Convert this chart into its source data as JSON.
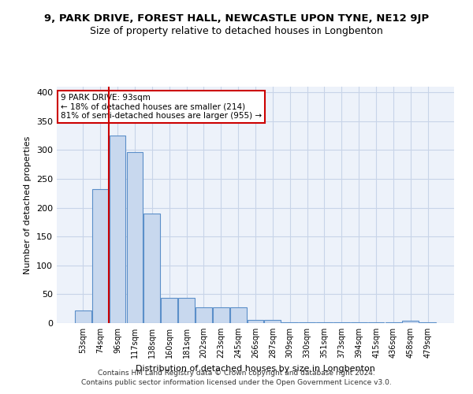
{
  "title_line1": "9, PARK DRIVE, FOREST HALL, NEWCASTLE UPON TYNE, NE12 9JP",
  "title_line2": "Size of property relative to detached houses in Longbenton",
  "xlabel": "Distribution of detached houses by size in Longbenton",
  "ylabel": "Number of detached properties",
  "categories": [
    "53sqm",
    "74sqm",
    "96sqm",
    "117sqm",
    "138sqm",
    "160sqm",
    "181sqm",
    "202sqm",
    "223sqm",
    "245sqm",
    "266sqm",
    "287sqm",
    "309sqm",
    "330sqm",
    "351sqm",
    "373sqm",
    "394sqm",
    "415sqm",
    "436sqm",
    "458sqm",
    "479sqm"
  ],
  "values": [
    22,
    232,
    325,
    296,
    190,
    44,
    44,
    27,
    28,
    28,
    5,
    5,
    1,
    1,
    1,
    1,
    1,
    1,
    1,
    4,
    1
  ],
  "bar_color": "#c8d8ee",
  "bar_edge_color": "#5b8fc9",
  "property_line_color": "#cc0000",
  "annotation_text_line1": "9 PARK DRIVE: 93sqm",
  "annotation_text_line2": "← 18% of detached houses are smaller (214)",
  "annotation_text_line3": "81% of semi-detached houses are larger (955) →",
  "annotation_box_color": "#ffffff",
  "annotation_box_edge_color": "#cc0000",
  "grid_color": "#c8d4e8",
  "background_color": "#edf2fa",
  "footer_line1": "Contains HM Land Registry data © Crown copyright and database right 2024.",
  "footer_line2": "Contains public sector information licensed under the Open Government Licence v3.0.",
  "ylim": [
    0,
    410
  ],
  "yticks": [
    0,
    50,
    100,
    150,
    200,
    250,
    300,
    350,
    400
  ]
}
